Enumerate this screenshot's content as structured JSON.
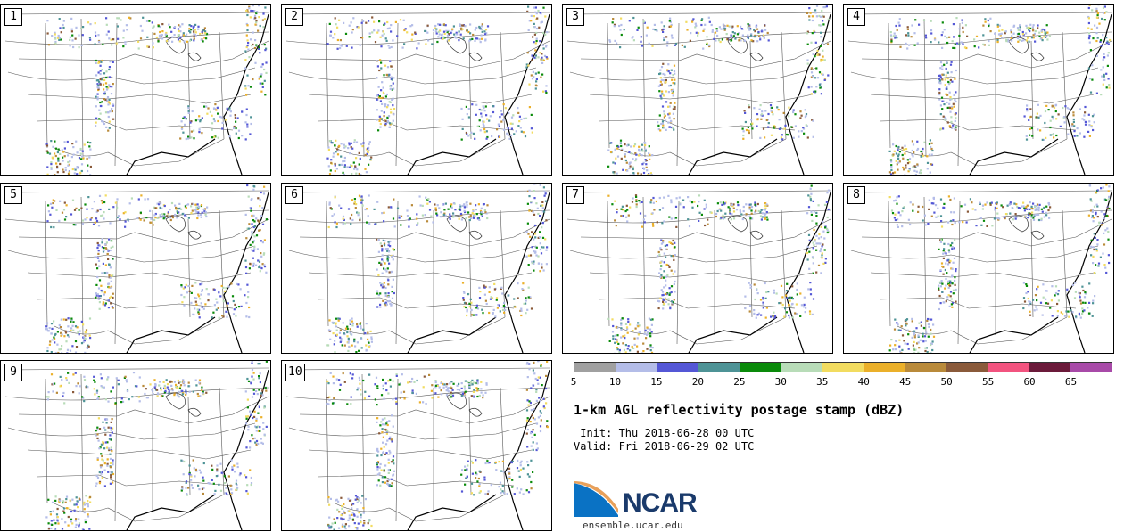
{
  "panels": [
    {
      "label": "1"
    },
    {
      "label": "2"
    },
    {
      "label": "3"
    },
    {
      "label": "4"
    },
    {
      "label": "5"
    },
    {
      "label": "6"
    },
    {
      "label": "7"
    },
    {
      "label": "8"
    },
    {
      "label": "9"
    },
    {
      "label": "10"
    }
  ],
  "colorbar": {
    "colors": [
      "#a0a0a0",
      "#b4bde8",
      "#5457d6",
      "#4e9396",
      "#0a8a0a",
      "#b8dcb8",
      "#f2dc60",
      "#ebb02a",
      "#b98a3a",
      "#8a5a3a",
      "#f2537f",
      "#6b1a3a",
      "#a84aa8"
    ],
    "ticks": [
      "5",
      "10",
      "15",
      "20",
      "25",
      "30",
      "35",
      "40",
      "45",
      "50",
      "55",
      "60",
      "65"
    ]
  },
  "title": "1-km AGL reflectivity postage stamp (dBZ)",
  "init": " Init: Thu 2018-06-28 00 UTC",
  "valid": "Valid: Fri 2018-06-29 02 UTC",
  "logo": {
    "text": "NCAR",
    "colors": {
      "blue": "#0a72c4",
      "orange": "#e8a05a",
      "navy": "#1a3a6b"
    }
  },
  "url": "ensemble.ucar.edu"
}
